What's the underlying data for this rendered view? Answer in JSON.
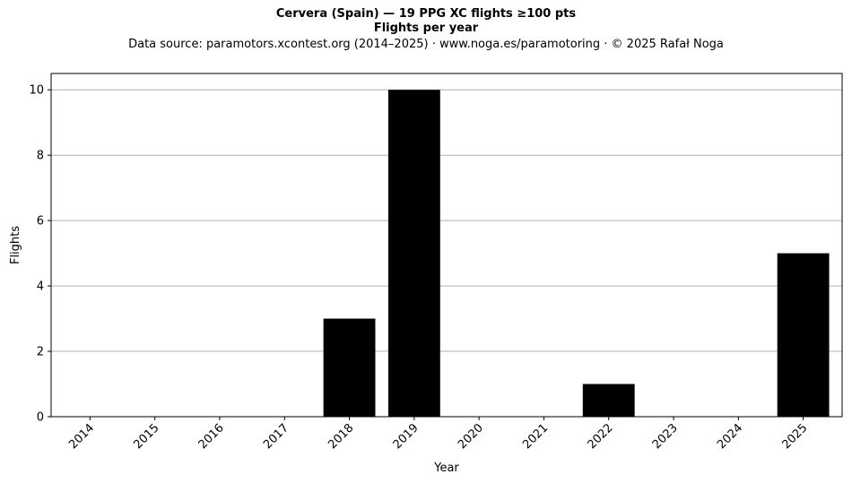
{
  "title": "Cervera (Spain)  —  19 PPG XC flights ≥100 pts",
  "subtitle": "Flights per year",
  "source_note": "Data source: paramotors.xcontest.org (2014–2025)  ·  www.noga.es/paramotoring  ·  © 2025 Rafał Noga",
  "chart_data": {
    "type": "bar",
    "categories": [
      "2014",
      "2015",
      "2016",
      "2017",
      "2018",
      "2019",
      "2020",
      "2021",
      "2022",
      "2023",
      "2024",
      "2025"
    ],
    "values": [
      0,
      0,
      0,
      0,
      3,
      10,
      0,
      0,
      1,
      0,
      0,
      5
    ],
    "xlabel": "Year",
    "ylabel": "Flights",
    "ylim": [
      0,
      10.5
    ],
    "yticks": [
      0,
      2,
      4,
      6,
      8,
      10
    ],
    "grid": "y",
    "bar_color": "#000000",
    "grid_color": "#b0b0b0"
  }
}
